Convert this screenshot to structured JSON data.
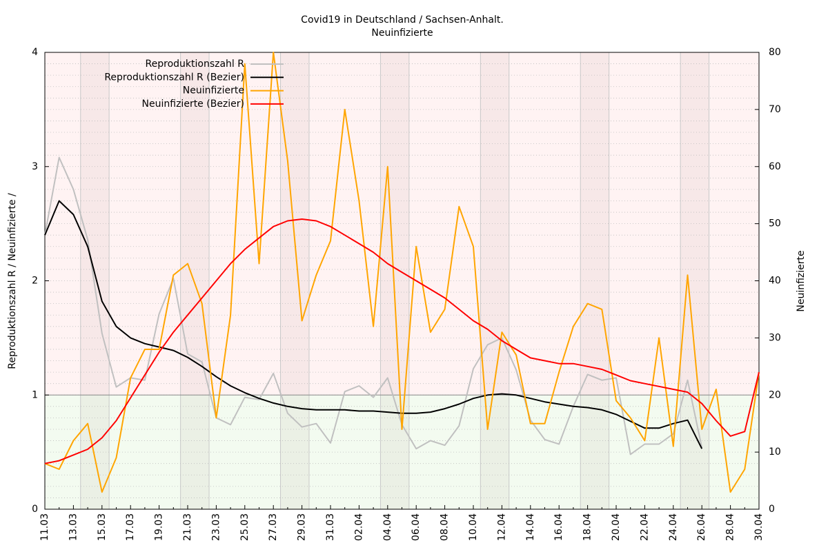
{
  "chart_data": {
    "type": "line",
    "title": "Covid19 in Deutschland / Sachsen-Anhalt.",
    "subtitle": "Neuinfizierte",
    "y_label": "Reproduktionszahl R / Neuinfizierte /",
    "y2_label": "Neuinfizierte",
    "categories": [
      "11.03",
      null,
      "13.03",
      null,
      "15.03",
      null,
      "17.03",
      null,
      "19.03",
      null,
      "21.03",
      null,
      "23.03",
      null,
      "25.03",
      null,
      "27.03",
      null,
      "29.03",
      null,
      "31.03",
      null,
      "02.04",
      null,
      "04.04",
      null,
      "06.04",
      null,
      "08.04",
      null,
      "10.04",
      null,
      "12.04",
      null,
      "14.04",
      null,
      "16.04",
      null,
      "18.04",
      null,
      "20.04",
      null,
      "22.04",
      null,
      "24.04",
      null,
      "26.04",
      null,
      "28.04",
      null,
      "30.04"
    ],
    "ylim": [
      0,
      4
    ],
    "yticks": [
      0,
      1,
      2,
      3,
      4
    ],
    "y2lim": [
      0,
      80
    ],
    "y2ticks": [
      0,
      10,
      20,
      30,
      40,
      50,
      60,
      70,
      80
    ],
    "reference_line": 1,
    "legend": "top",
    "series": [
      {
        "name": "Reproduktionszahl R",
        "color": "#c0c0c0",
        "axis": "y",
        "values": [
          2.4,
          3.08,
          2.8,
          2.36,
          1.54,
          1.07,
          1.15,
          1.13,
          1.71,
          2.02,
          1.36,
          1.29,
          0.8,
          0.74,
          0.98,
          0.96,
          1.19,
          0.84,
          0.72,
          0.75,
          0.58,
          1.03,
          1.08,
          0.98,
          1.15,
          0.74,
          0.53,
          0.6,
          0.56,
          0.73,
          1.23,
          1.44,
          1.5,
          1.22,
          0.78,
          0.61,
          0.57,
          0.9,
          1.18,
          1.13,
          1.15,
          0.48,
          0.57,
          0.57,
          0.66,
          1.13,
          0.54,
          null,
          null,
          null,
          null
        ]
      },
      {
        "name": "Reproduktionszahl R (Bezier)",
        "color": "#000000",
        "axis": "y",
        "values": [
          2.4,
          2.7,
          2.58,
          2.3,
          1.82,
          1.6,
          1.5,
          1.45,
          1.42,
          1.39,
          1.33,
          1.25,
          1.16,
          1.08,
          1.02,
          0.97,
          0.93,
          0.9,
          0.88,
          0.87,
          0.87,
          0.87,
          0.86,
          0.86,
          0.85,
          0.84,
          0.84,
          0.85,
          0.88,
          0.92,
          0.97,
          1.0,
          1.01,
          1.0,
          0.97,
          0.94,
          0.92,
          0.9,
          0.89,
          0.87,
          0.83,
          0.77,
          0.71,
          0.71,
          0.75,
          0.78,
          0.53,
          null,
          null,
          null,
          null
        ]
      },
      {
        "name": "Neuinfizierte",
        "color": "#ffa500",
        "axis": "y2",
        "values": [
          8,
          7,
          12,
          15,
          3,
          9,
          23,
          28,
          28,
          41,
          43,
          36,
          16,
          34,
          78,
          43,
          80,
          61,
          33,
          41,
          47,
          70,
          54,
          32,
          60,
          14,
          46,
          31,
          35,
          53,
          46,
          14,
          31,
          27,
          15,
          15,
          24,
          32,
          36,
          35,
          19,
          16,
          12,
          30,
          11,
          41,
          14,
          21,
          3,
          7,
          24
        ]
      },
      {
        "name": "Neuinfizierte (Bezier)",
        "color": "#ff0000",
        "axis": "y2",
        "values": [
          8,
          8.5,
          9.5,
          10.5,
          12.5,
          15.5,
          19.5,
          23.5,
          27.5,
          31,
          34,
          37,
          40,
          43,
          45.5,
          47.5,
          49.5,
          50.5,
          50.8,
          50.5,
          49.5,
          48,
          46.5,
          45,
          43,
          41.5,
          40,
          38.5,
          37,
          35,
          33,
          31.5,
          29.5,
          28,
          26.5,
          26,
          25.5,
          25.5,
          25,
          24.5,
          23.5,
          22.5,
          22,
          21.5,
          21,
          20.5,
          18.5,
          15.5,
          12.8,
          13.6,
          24
        ]
      }
    ]
  }
}
